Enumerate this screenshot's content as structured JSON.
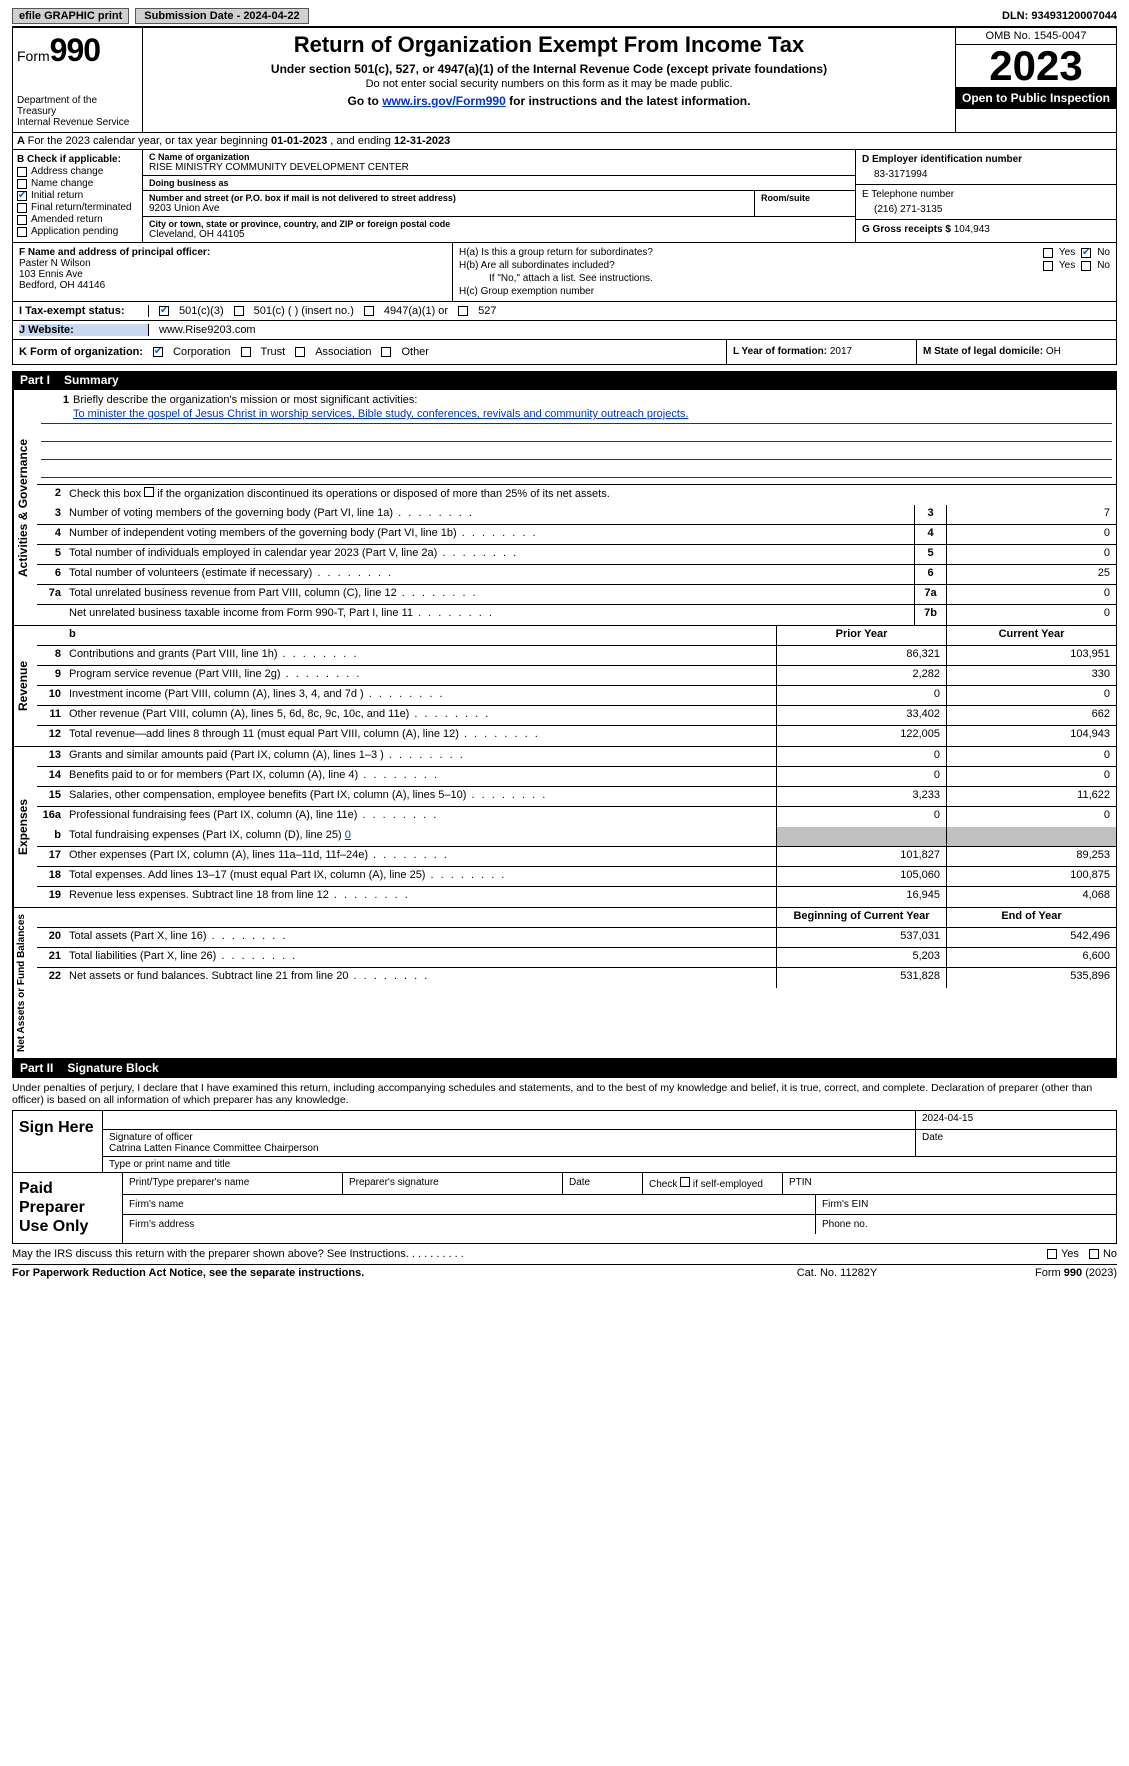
{
  "topbar": {
    "efile": "efile GRAPHIC print",
    "submission_label": "Submission Date - 2024-04-22",
    "dln": "DLN: 93493120007044"
  },
  "header": {
    "form_prefix": "Form",
    "form_number": "990",
    "dept": "Department of the Treasury",
    "irs": "Internal Revenue Service",
    "title": "Return of Organization Exempt From Income Tax",
    "subtitle": "Under section 501(c), 527, or 4947(a)(1) of the Internal Revenue Code (except private foundations)",
    "note1": "Do not enter social security numbers on this form as it may be made public.",
    "goto_prefix": "Go to ",
    "goto_link": "www.irs.gov/Form990",
    "goto_suffix": " for instructions and the latest information.",
    "omb": "OMB No. 1545-0047",
    "year": "2023",
    "open_pub": "Open to Public Inspection"
  },
  "lineA": {
    "text_prefix": "For the 2023 calendar year, or tax year beginning ",
    "begin": "01-01-2023",
    "mid": " , and ending ",
    "end": "12-31-2023"
  },
  "colB": {
    "header": "B Check if applicable:",
    "items": [
      {
        "label": "Address change",
        "checked": false
      },
      {
        "label": "Name change",
        "checked": false
      },
      {
        "label": "Initial return",
        "checked": true
      },
      {
        "label": "Final return/terminated",
        "checked": false
      },
      {
        "label": "Amended return",
        "checked": false
      },
      {
        "label": "Application pending",
        "checked": false
      }
    ]
  },
  "colC": {
    "name_label": "C Name of organization",
    "name": "RISE MINISTRY COMMUNITY DEVELOPMENT CENTER",
    "dba_label": "Doing business as",
    "dba": "",
    "street_label": "Number and street (or P.O. box if mail is not delivered to street address)",
    "street": "9203 Union Ave",
    "room_label": "Room/suite",
    "city_label": "City or town, state or province, country, and ZIP or foreign postal code",
    "city": "Cleveland, OH  44105"
  },
  "colD": {
    "ein_label": "D Employer identification number",
    "ein": "83-3171994",
    "phone_label": "E Telephone number",
    "phone": "(216) 271-3135",
    "gross_label": "G Gross receipts $ ",
    "gross": "104,943"
  },
  "colF": {
    "label": "F  Name and address of principal officer:",
    "name": "Paster N Wilson",
    "addr1": "103 Ennis Ave",
    "addr2": "Bedford, OH  44146"
  },
  "colH": {
    "ha_label": "H(a)  Is this a group return for subordinates?",
    "ha_yes": false,
    "ha_no": true,
    "hb_label": "H(b)  Are all subordinates included?",
    "hb_note": "If \"No,\" attach a list. See instructions.",
    "hc_label": "H(c)  Group exemption number",
    "hc_val": ""
  },
  "rowI": {
    "label": "I   Tax-exempt status:",
    "opt_501c3": "501(c)(3)",
    "opt_501c": "501(c) (  ) (insert no.)",
    "opt_4947": "4947(a)(1) or",
    "opt_527": "527",
    "checked_501c3": true
  },
  "rowJ": {
    "label": "J   Website:",
    "value": "www.Rise9203.com"
  },
  "rowK": {
    "label": "K Form of organization:",
    "opts": [
      "Corporation",
      "Trust",
      "Association",
      "Other"
    ],
    "checked": "Corporation",
    "L_label": "L Year of formation: ",
    "L_val": "2017",
    "M_label": "M State of legal domicile: ",
    "M_val": "OH"
  },
  "part1": {
    "num": "Part I",
    "title": "Summary"
  },
  "summary": {
    "line1_label": "Briefly describe the organization's mission or most significant activities:",
    "line1_text": "To minister the gospel of Jesus Christ in worship services, Bible study, conferences, revivals and community outreach projects.",
    "line2": "Check this box      if the organization discontinued its operations or disposed of more than 25% of its net assets.",
    "gov_rows": [
      {
        "n": "3",
        "desc": "Number of voting members of the governing body (Part VI, line 1a)",
        "box": "3",
        "val": "7"
      },
      {
        "n": "4",
        "desc": "Number of independent voting members of the governing body (Part VI, line 1b)",
        "box": "4",
        "val": "0"
      },
      {
        "n": "5",
        "desc": "Total number of individuals employed in calendar year 2023 (Part V, line 2a)",
        "box": "5",
        "val": "0"
      },
      {
        "n": "6",
        "desc": "Total number of volunteers (estimate if necessary)",
        "box": "6",
        "val": "25"
      },
      {
        "n": "7a",
        "desc": "Total unrelated business revenue from Part VIII, column (C), line 12",
        "box": "7a",
        "val": "0"
      },
      {
        "n": "",
        "desc": "Net unrelated business taxable income from Form 990-T, Part I, line 11",
        "box": "7b",
        "val": "0"
      }
    ],
    "prior_hdr": "Prior Year",
    "curr_hdr": "Current Year",
    "rev_rows": [
      {
        "n": "8",
        "desc": "Contributions and grants (Part VIII, line 1h)",
        "py": "86,321",
        "cy": "103,951"
      },
      {
        "n": "9",
        "desc": "Program service revenue (Part VIII, line 2g)",
        "py": "2,282",
        "cy": "330"
      },
      {
        "n": "10",
        "desc": "Investment income (Part VIII, column (A), lines 3, 4, and 7d )",
        "py": "0",
        "cy": "0"
      },
      {
        "n": "11",
        "desc": "Other revenue (Part VIII, column (A), lines 5, 6d, 8c, 9c, 10c, and 11e)",
        "py": "33,402",
        "cy": "662"
      },
      {
        "n": "12",
        "desc": "Total revenue—add lines 8 through 11 (must equal Part VIII, column (A), line 12)",
        "py": "122,005",
        "cy": "104,943"
      }
    ],
    "exp_rows": [
      {
        "n": "13",
        "desc": "Grants and similar amounts paid (Part IX, column (A), lines 1–3 )",
        "py": "0",
        "cy": "0"
      },
      {
        "n": "14",
        "desc": "Benefits paid to or for members (Part IX, column (A), line 4)",
        "py": "0",
        "cy": "0"
      },
      {
        "n": "15",
        "desc": "Salaries, other compensation, employee benefits (Part IX, column (A), lines 5–10)",
        "py": "3,233",
        "cy": "11,622"
      },
      {
        "n": "16a",
        "desc": "Professional fundraising fees (Part IX, column (A), line 11e)",
        "py": "0",
        "cy": "0"
      }
    ],
    "line16b": "Total fundraising expenses (Part IX, column (D), line 25) ",
    "line16b_val": "0",
    "exp_rows2": [
      {
        "n": "17",
        "desc": "Other expenses (Part IX, column (A), lines 11a–11d, 11f–24e)",
        "py": "101,827",
        "cy": "89,253"
      },
      {
        "n": "18",
        "desc": "Total expenses. Add lines 13–17 (must equal Part IX, column (A), line 25)",
        "py": "105,060",
        "cy": "100,875"
      },
      {
        "n": "19",
        "desc": "Revenue less expenses. Subtract line 18 from line 12",
        "py": "16,945",
        "cy": "4,068"
      }
    ],
    "na_hdr1": "Beginning of Current Year",
    "na_hdr2": "End of Year",
    "na_rows": [
      {
        "n": "20",
        "desc": "Total assets (Part X, line 16)",
        "py": "537,031",
        "cy": "542,496"
      },
      {
        "n": "21",
        "desc": "Total liabilities (Part X, line 26)",
        "py": "5,203",
        "cy": "6,600"
      },
      {
        "n": "22",
        "desc": "Net assets or fund balances. Subtract line 21 from line 20",
        "py": "531,828",
        "cy": "535,896"
      }
    ]
  },
  "vlabels": {
    "gov": "Activities & Governance",
    "rev": "Revenue",
    "exp": "Expenses",
    "na": "Net Assets or Fund Balances"
  },
  "part2": {
    "num": "Part II",
    "title": "Signature Block"
  },
  "sig": {
    "declaration": "Under penalties of perjury, I declare that I have examined this return, including accompanying schedules and statements, and to the best of my knowledge and belief, it is true, correct, and complete. Declaration of preparer (other than officer) is based on all information of which preparer has any knowledge.",
    "sign_here": "Sign Here",
    "sig_officer": "Signature of officer",
    "date_label": "Date",
    "date_val": "2024-04-15",
    "officer_name": "Catrina Latten Finance Committee Chairperson",
    "type_name": "Type or print name and title"
  },
  "paid": {
    "title": "Paid Preparer Use Only",
    "h1": "Print/Type preparer's name",
    "h2": "Preparer's signature",
    "h3": "Date",
    "h4": "Check       if self-employed",
    "h5": "PTIN",
    "firm_name": "Firm's name",
    "firm_ein": "Firm's EIN",
    "firm_addr": "Firm's address",
    "phone": "Phone no."
  },
  "footer": {
    "discuss": "May the IRS discuss this return with the preparer shown above? See Instructions.",
    "pra": "For Paperwork Reduction Act Notice, see the separate instructions.",
    "cat": "Cat. No. 11282Y",
    "form": "Form 990 (2023)",
    "yes": "Yes",
    "no": "No"
  }
}
